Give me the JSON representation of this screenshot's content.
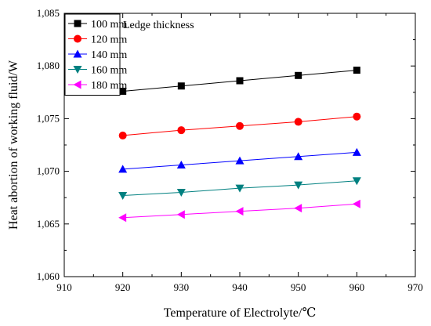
{
  "chart_data": {
    "type": "line",
    "title": "",
    "xlabel": "Temperature of Electrolyte/℃",
    "ylabel": "Heat abortion of working fluid/W",
    "xlim": [
      910,
      970
    ],
    "ylim": [
      1060,
      1085
    ],
    "xticks": [
      910,
      920,
      930,
      940,
      950,
      960,
      970
    ],
    "xtick_labels": [
      "910",
      "920",
      "930",
      "940",
      "950",
      "960",
      "970"
    ],
    "yticks": [
      1060,
      1065,
      1070,
      1075,
      1080,
      1085
    ],
    "ytick_labels": [
      "1,060",
      "1,065",
      "1,070",
      "1,075",
      "1,080",
      "1,085"
    ],
    "grid": false,
    "legend_title": "Ledge thickness",
    "legend_position": "top-left",
    "x": [
      920,
      930,
      940,
      950,
      960
    ],
    "series": [
      {
        "name": "100  mm",
        "marker": "square",
        "color": "#000000",
        "line_color": "#000000",
        "values": [
          1077.6,
          1078.1,
          1078.6,
          1079.1,
          1079.6
        ]
      },
      {
        "name": "120  mm",
        "marker": "circle",
        "color": "#ff0000",
        "line_color": "#ff0000",
        "values": [
          1073.4,
          1073.9,
          1074.3,
          1074.7,
          1075.2
        ]
      },
      {
        "name": "140  mm",
        "marker": "triangle-up",
        "color": "#0000ff",
        "line_color": "#0000ff",
        "values": [
          1070.2,
          1070.6,
          1071.0,
          1071.4,
          1071.8
        ]
      },
      {
        "name": "160  mm",
        "marker": "triangle-down",
        "color": "#008080",
        "line_color": "#008080",
        "values": [
          1067.7,
          1068.0,
          1068.4,
          1068.7,
          1069.1
        ]
      },
      {
        "name": "180  mm",
        "marker": "triangle-left",
        "color": "#ff00ff",
        "line_color": "#ff00ff",
        "values": [
          1065.6,
          1065.9,
          1066.2,
          1066.5,
          1066.9
        ]
      }
    ]
  }
}
